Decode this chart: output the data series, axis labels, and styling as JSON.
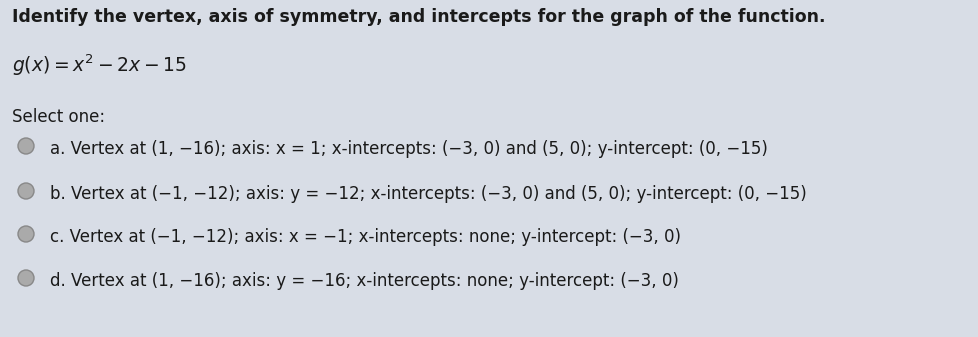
{
  "background_color": "#d8dde6",
  "title": "Identify the vertex, axis of symmetry, and intercepts for the graph of the function.",
  "title_fontsize": 12.5,
  "function_fontsize": 13.5,
  "select_one": "Select one:",
  "select_fontsize": 12,
  "options": [
    "a. Vertex at (1, −16); axis: x = 1; x-intercepts: (−3, 0) and (5, 0); y-intercept: (0, −15)",
    "b. Vertex at (−1, −12); axis: y = −12; x-intercepts: (−3, 0) and (5, 0); y-intercept: (0, −15)",
    "c. Vertex at (−1, −12); axis: x = −1; x-intercepts: none; y-intercept: (−3, 0)",
    "d. Vertex at (1, −16); axis: y = −16; x-intercepts: none; y-intercept: (−3, 0)"
  ],
  "option_fontsize": 12,
  "text_color": "#1a1a1a",
  "radio_color": "#aaaaaa",
  "radio_edge_color": "#888888"
}
